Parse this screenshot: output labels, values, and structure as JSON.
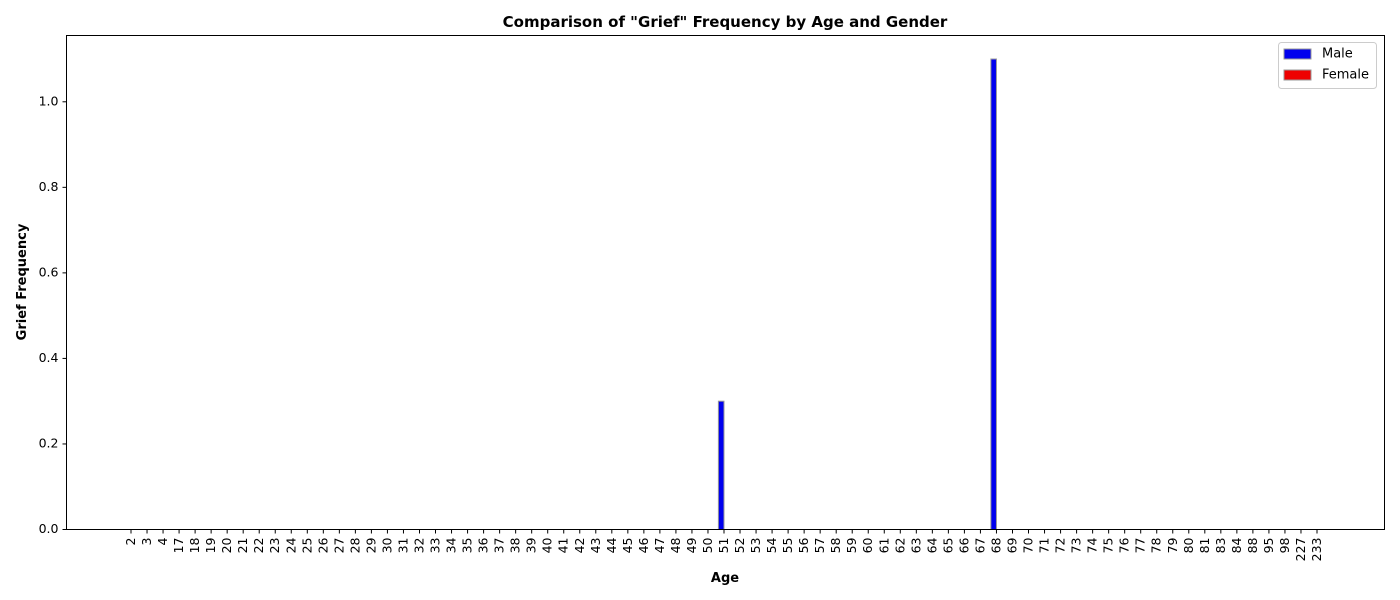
{
  "chart_data": {
    "type": "bar",
    "title": "Comparison of \"Grief\" Frequency by Age and Gender",
    "xlabel": "Age",
    "ylabel": "Grief Frequency",
    "categories": [
      "2",
      "3",
      "4",
      "17",
      "18",
      "19",
      "20",
      "21",
      "22",
      "23",
      "24",
      "25",
      "26",
      "27",
      "28",
      "29",
      "30",
      "31",
      "32",
      "33",
      "34",
      "35",
      "36",
      "37",
      "38",
      "39",
      "40",
      "41",
      "42",
      "43",
      "44",
      "45",
      "46",
      "47",
      "48",
      "49",
      "50",
      "51",
      "52",
      "53",
      "54",
      "55",
      "56",
      "57",
      "58",
      "59",
      "60",
      "61",
      "62",
      "63",
      "64",
      "65",
      "66",
      "67",
      "68",
      "69",
      "70",
      "71",
      "72",
      "73",
      "74",
      "75",
      "76",
      "77",
      "78",
      "79",
      "80",
      "81",
      "83",
      "84",
      "88",
      "95",
      "98",
      "227",
      "233"
    ],
    "series": [
      {
        "name": "Male",
        "color": "#0000ee",
        "values": [
          0,
          0,
          0,
          0,
          0,
          0,
          0,
          0,
          0,
          0,
          0,
          0,
          0,
          0,
          0,
          0,
          0,
          0,
          0,
          0,
          0,
          0,
          0,
          0,
          0,
          0,
          0,
          0,
          0,
          0,
          0,
          0,
          0,
          0,
          0,
          0,
          0,
          0.3,
          0,
          0,
          0,
          0,
          0,
          0,
          0,
          0,
          0,
          0,
          0,
          0,
          0,
          0,
          0,
          0,
          1.1,
          0,
          0,
          0,
          0,
          0,
          0,
          0,
          0,
          0,
          0,
          0,
          0,
          0,
          0,
          0,
          0,
          0,
          0,
          0,
          0
        ]
      },
      {
        "name": "Female",
        "color": "#ee0000",
        "values": [
          0,
          0,
          0,
          0,
          0,
          0,
          0,
          0,
          0,
          0,
          0,
          0,
          0,
          0,
          0,
          0,
          0,
          0,
          0,
          0,
          0,
          0,
          0,
          0,
          0,
          0,
          0,
          0,
          0,
          0,
          0,
          0,
          0,
          0,
          0,
          0,
          0,
          0,
          0,
          0,
          0,
          0,
          0,
          0,
          0,
          0,
          0,
          0,
          0,
          0,
          0,
          0,
          0,
          0,
          0,
          0,
          0,
          0,
          0,
          0,
          0,
          0,
          0,
          0,
          0,
          0,
          0,
          0,
          0,
          0,
          0,
          0,
          0,
          0,
          0
        ]
      }
    ],
    "ylim": [
      0,
      1.155
    ],
    "yticks": [
      0.0,
      0.2,
      0.4,
      0.6,
      0.8,
      1.0
    ],
    "ytick_labels": [
      "0.0",
      "0.2",
      "0.4",
      "0.6",
      "0.8",
      "1.0"
    ],
    "legend_position": "top-right",
    "grid": false
  }
}
